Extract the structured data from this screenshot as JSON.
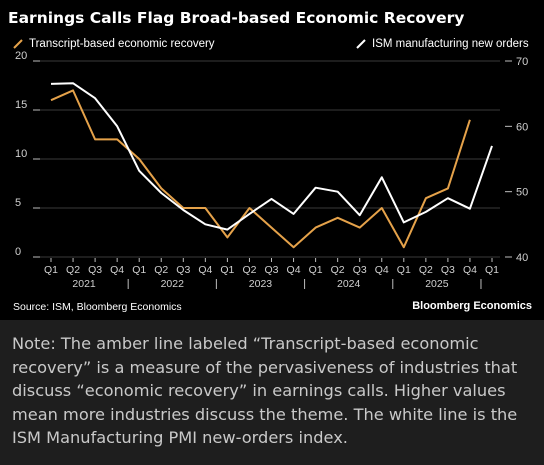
{
  "chart_data": {
    "type": "line",
    "title": "Earnings Calls Flag Broad-based Economic Recovery",
    "quarters": [
      "Q1",
      "Q2",
      "Q3",
      "Q4",
      "Q1",
      "Q2",
      "Q3",
      "Q4",
      "Q1",
      "Q2",
      "Q3",
      "Q4",
      "Q1",
      "Q2",
      "Q3",
      "Q4",
      "Q1",
      "Q2",
      "Q3",
      "Q4",
      "Q1"
    ],
    "years": [
      {
        "label": "2021",
        "start": 0,
        "end": 3
      },
      {
        "label": "2022",
        "start": 4,
        "end": 7
      },
      {
        "label": "2023",
        "start": 8,
        "end": 11
      },
      {
        "label": "2024",
        "start": 12,
        "end": 15
      },
      {
        "label": "2025",
        "start": 16,
        "end": 19
      }
    ],
    "left_axis": {
      "ylim": [
        0,
        20
      ],
      "ticks": [
        "0",
        "5",
        "10",
        "15",
        "20"
      ]
    },
    "right_axis": {
      "ylim": [
        40,
        70
      ],
      "ticks": [
        "40",
        "50",
        "60",
        "70"
      ]
    },
    "series": [
      {
        "name": "Transcript-based economic recovery",
        "axis": "left",
        "color": "#e5a24a",
        "values": [
          16,
          17,
          12,
          12,
          10,
          7,
          5,
          5,
          2,
          5,
          3,
          1,
          3,
          4,
          3,
          5,
          1,
          6,
          7,
          14,
          null
        ]
      },
      {
        "name": "ISM manufacturing new orders",
        "axis": "right",
        "color": "#ffffff",
        "values": [
          66.5,
          66.6,
          64.3,
          60.0,
          53.2,
          49.8,
          47.2,
          45.0,
          44.2,
          46.6,
          48.9,
          46.6,
          50.6,
          50.0,
          46.4,
          52.2,
          45.3,
          46.9,
          49.0,
          47.4,
          57.0
        ]
      }
    ]
  },
  "source": "Source: ISM, Bloomberg Economics",
  "brand": "Bloomberg Economics",
  "note": "Note: The amber line labeled “Transcript-based economic recovery” is a measure of the pervasiveness of industries that discuss “economic recovery” in earnings calls. Higher values mean more industries discuss the theme. The white line is the ISM Manufacturing PMI new-orders index."
}
